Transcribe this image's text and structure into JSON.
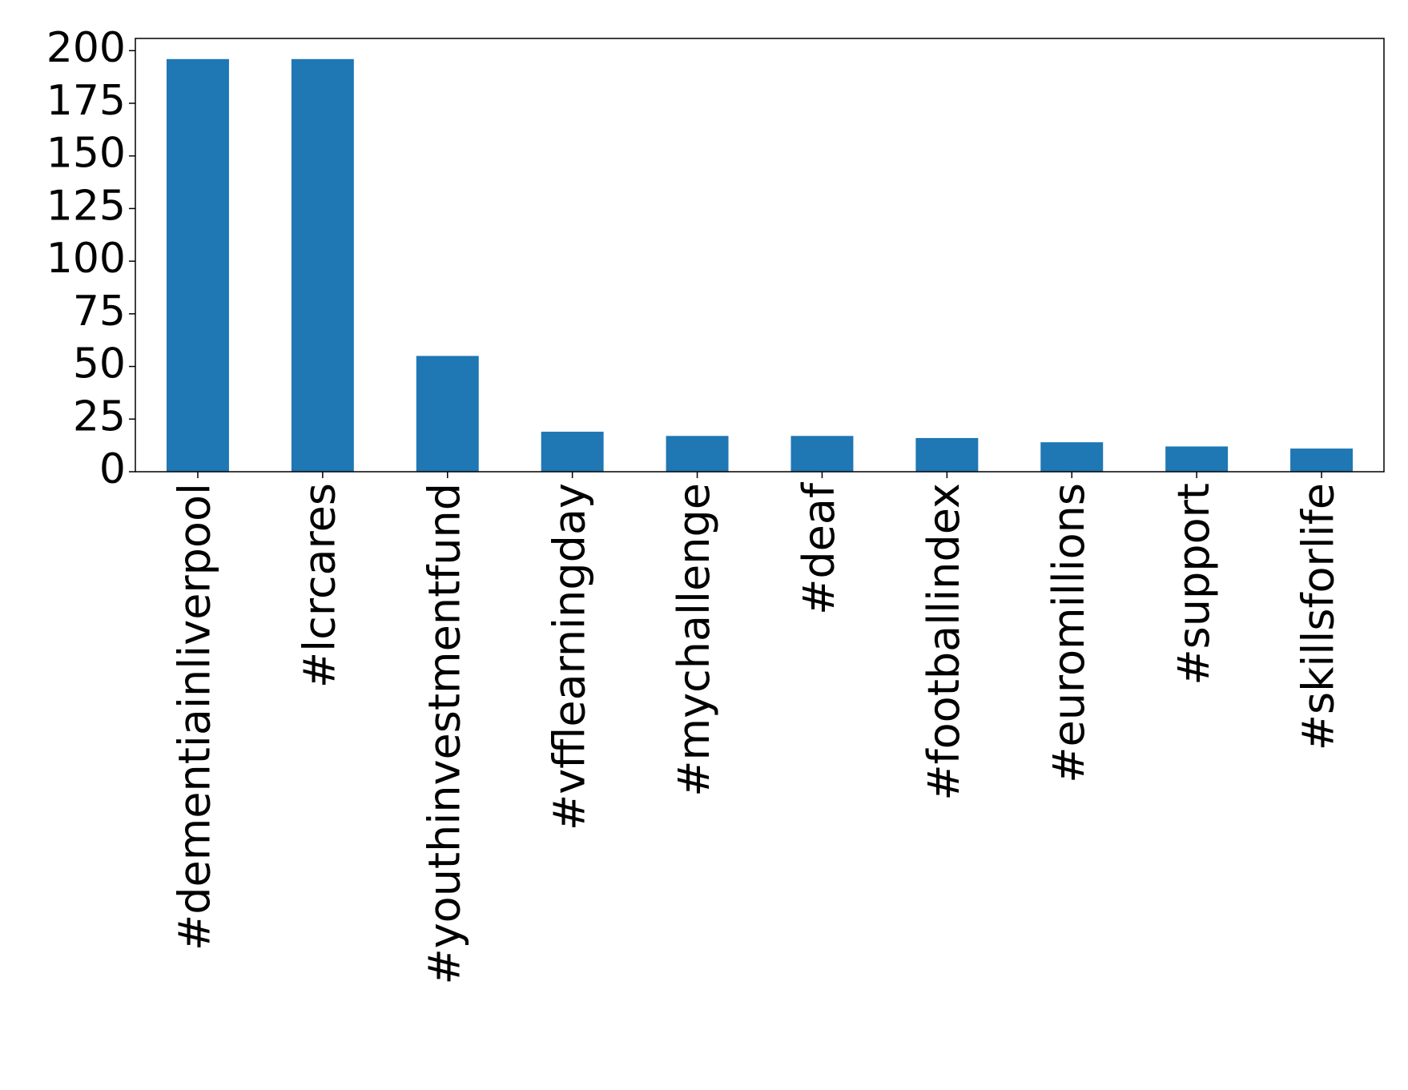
{
  "chart_data": {
    "type": "bar",
    "categories": [
      "#dementiainliverpool",
      "#lcrcares",
      "#youthinvestmentfund",
      "#vfflearningday",
      "#mychallenge",
      "#deaf",
      "#footballindex",
      "#euromillions",
      "#support",
      "#skillsforlife"
    ],
    "values": [
      196,
      196,
      55,
      19,
      17,
      17,
      16,
      14,
      12,
      11
    ],
    "color": "#1f77b4",
    "ylim": [
      0,
      205.8
    ],
    "yticks": [
      0,
      25,
      50,
      75,
      100,
      125,
      150,
      175,
      200
    ],
    "grid": false
  }
}
